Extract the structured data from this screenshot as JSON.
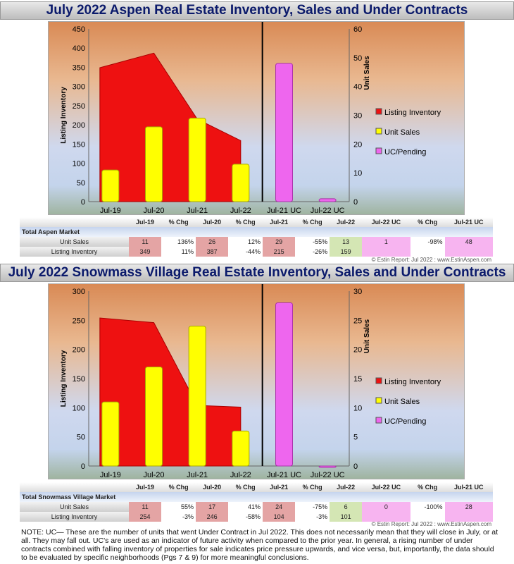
{
  "chart_data": [
    {
      "type": "bar+area",
      "title": "July 2022 Aspen Real Estate Inventory, Sales and Under Contracts",
      "categories": [
        "Jul-19",
        "Jul-20",
        "Jul-21",
        "Jul-22",
        "Jul-21 UC",
        "Jul-22 UC"
      ],
      "ylabel": "Listing Inventory",
      "y2label": "Unit Sales",
      "ylim": [
        0,
        450
      ],
      "y2lim": [
        0,
        60
      ],
      "yticks": [
        "0",
        "50",
        "100",
        "150",
        "200",
        "250",
        "300",
        "350",
        "400",
        "450"
      ],
      "y2ticks": [
        "0",
        "10",
        "20",
        "30",
        "40",
        "50",
        "60"
      ],
      "series": [
        {
          "name": "Listing Inventory",
          "type": "area",
          "color": "#ee1111",
          "values": [
            349,
            387,
            215,
            159,
            null,
            null
          ]
        },
        {
          "name": "Unit Sales",
          "type": "bar",
          "color": "#ffff00",
          "values": [
            11,
            26,
            29,
            13,
            null,
            null
          ]
        },
        {
          "name": "UC/Pending",
          "type": "bar",
          "color": "#ee66ee",
          "values": [
            null,
            null,
            null,
            null,
            48,
            1
          ]
        }
      ],
      "legend": "right"
    },
    {
      "type": "bar+area",
      "title": "July 2022 Snowmass Village Real Estate Inventory, Sales and Under Contracts",
      "categories": [
        "Jul-19",
        "Jul-20",
        "Jul-21",
        "Jul-22",
        "Jul-21 UC",
        "Jul-22 UC"
      ],
      "ylabel": "Listing Inventory",
      "y2label": "Unit Sales",
      "ylim": [
        0,
        300
      ],
      "y2lim": [
        0,
        30
      ],
      "yticks": [
        "0",
        "50",
        "100",
        "150",
        "200",
        "250",
        "300"
      ],
      "y2ticks": [
        "0",
        "5",
        "10",
        "15",
        "20",
        "25",
        "30"
      ],
      "series": [
        {
          "name": "Listing Inventory",
          "type": "area",
          "color": "#ee1111",
          "values": [
            254,
            246,
            104,
            101,
            null,
            null
          ]
        },
        {
          "name": "Unit Sales",
          "type": "bar",
          "color": "#ffff00",
          "values": [
            11,
            17,
            24,
            6,
            null,
            null
          ]
        },
        {
          "name": "UC/Pending",
          "type": "bar",
          "color": "#ee66ee",
          "values": [
            null,
            null,
            null,
            null,
            28,
            0
          ]
        }
      ],
      "legend": "right"
    }
  ],
  "tables": [
    {
      "section": "Total Aspen Market",
      "headers": [
        "Jul-19",
        "% Chg",
        "Jul-20",
        "% Chg",
        "Jul-21",
        "% Chg",
        "Jul-22",
        "Jul-22 UC",
        "% Chg",
        "Jul-21 UC"
      ],
      "rows": [
        {
          "label": "Unit Sales",
          "cells": [
            "11",
            "136%",
            "26",
            "12%",
            "29",
            "-55%",
            "13",
            "1",
            "-98%",
            "48"
          ]
        },
        {
          "label": "Listing Inventory",
          "cells": [
            "349",
            "11%",
            "387",
            "-44%",
            "215",
            "-26%",
            "159",
            "",
            "",
            ""
          ]
        }
      ]
    },
    {
      "section": "Total Snowmass Village Market",
      "headers": [
        "Jul-19",
        "% Chg",
        "Jul-20",
        "% Chg",
        "Jul-21",
        "% Chg",
        "Jul-22",
        "Jul-22 UC",
        "% Chg",
        "Jul-21 UC"
      ],
      "rows": [
        {
          "label": "Unit Sales",
          "cells": [
            "11",
            "55%",
            "17",
            "41%",
            "24",
            "-75%",
            "6",
            "0",
            "-100%",
            "28"
          ]
        },
        {
          "label": "Listing Inventory",
          "cells": [
            "254",
            "-3%",
            "246",
            "-58%",
            "104",
            "-3%",
            "101",
            "",
            "",
            ""
          ]
        }
      ]
    }
  ],
  "credit": "© Estin Report: Jul 2022 : www.EstinAspen.com",
  "note": "NOTE: UC— These are the number of units that went Under Contract in Jul 2022. This does not necessarily mean that they will close in July, or at all. They may fall out. UC's are used as an indicator of future activity when compared to the prior year. In general, a rising number of under contracts combined with falling inventory of properties for sale indicates price pressure upwards, and vice versa, but, importantly, the data should to be evaluated by specific neighborhoods (Pgs 7 & 9) for more meaningful conclusions."
}
